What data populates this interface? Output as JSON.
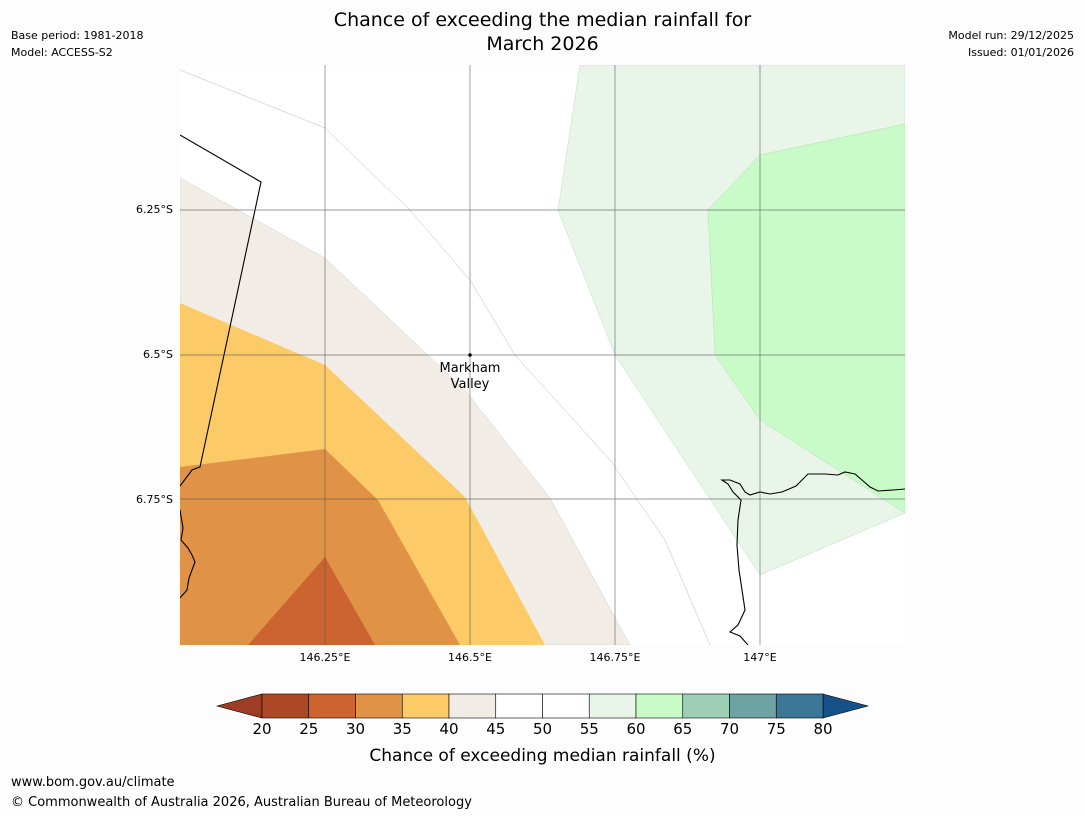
{
  "meta": {
    "base_period": "Base period: 1981-2018",
    "model": "Model: ACCESS-S2",
    "model_run": "Model run: 29/12/2025",
    "issued": "Issued: 01/01/2026"
  },
  "title": {
    "line1": "Chance of exceeding the median rainfall for",
    "line2": "March 2026"
  },
  "map": {
    "lat_labels": [
      "6.25°S",
      "6.5°S",
      "6.75°S"
    ],
    "lon_labels": [
      "146.25°E",
      "146.5°E",
      "146.75°E",
      "147°E"
    ],
    "place": {
      "name_line1": "Markham",
      "name_line2": "Valley"
    }
  },
  "colorbar": {
    "ticks": [
      "20",
      "25",
      "30",
      "35",
      "40",
      "45",
      "50",
      "55",
      "60",
      "65",
      "70",
      "75",
      "80"
    ],
    "colors": [
      "#ac4a28",
      "#cb6431",
      "#e09347",
      "#fccb67",
      "#f1ece5",
      "#ffffff",
      "#ffffff",
      "#e8f5e8",
      "#c9fbc9",
      "#9ccfb6",
      "#6ea3a4",
      "#3d7797"
    ],
    "under_color": "#9e3d26",
    "over_color": "#175189",
    "label": "Chance of exceeding median rainfall (%)"
  },
  "footer": {
    "url": "www.bom.gov.au/climate",
    "copyright": "© Commonwealth of Australia 2026, Australian Bureau of Meteorology"
  }
}
